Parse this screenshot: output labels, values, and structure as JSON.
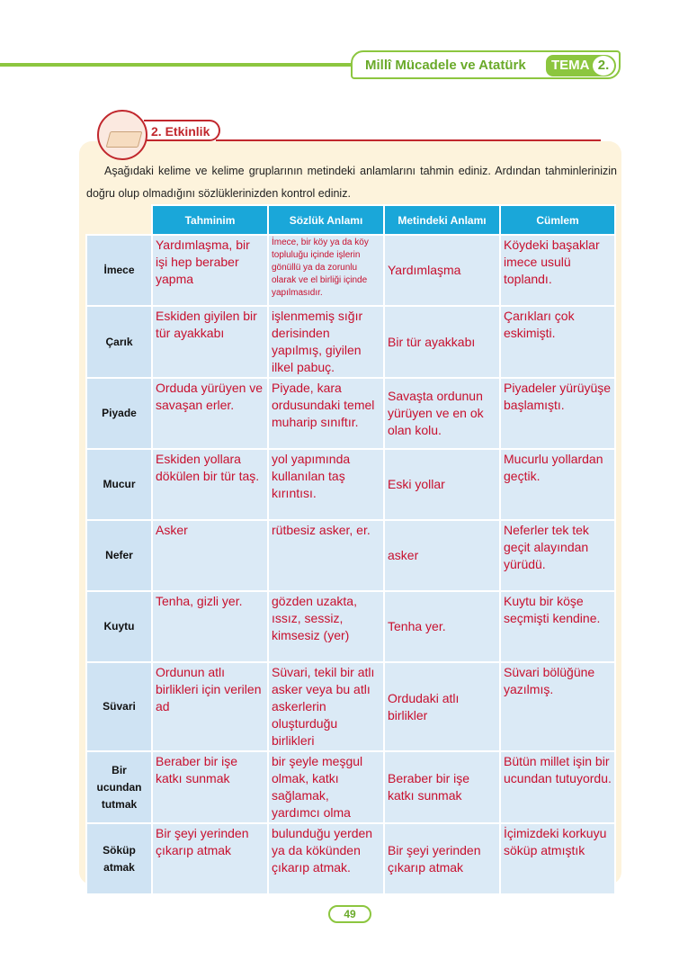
{
  "header": {
    "theme_title": "Millî Mücadele ve Atatürk",
    "tema_label": "TEMA",
    "tema_number": "2.",
    "accent": "#8cc63f"
  },
  "activity": {
    "label": "2. Etkinlik",
    "icon": "open-book-pencil-icon",
    "accent": "#c1272d"
  },
  "intro": "Aşağıdaki kelime ve kelime gruplarının metindeki anlamlarını tahmin ediniz. Ardından tahminlerinizin doğru olup olmadığını sözlüklerinizden kontrol ediniz.",
  "table": {
    "columns": [
      "Tahminim",
      "Sözlük Anlamı",
      "Metindeki Anlamı",
      "Cümlem"
    ],
    "rows": [
      {
        "word": "İmece",
        "guess": "Yardımlaşma, bir işi hep beraber yapma",
        "dictionary": "İmece, bir köy ya da köy topluluğu içinde işlerin gönüllü ya da zorunlu olarak ve el birliği içinde yapılmasıdır.",
        "context": "Yardımlaşma",
        "sentence": "Köydeki başaklar imece usulü toplandı."
      },
      {
        "word": "Çarık",
        "guess": "Eskiden giyilen bir tür ayakkabı",
        "dictionary": "işlenmemiş sığır derisinden yapılmış, giyilen ilkel pabuç.",
        "context": "Bir tür ayakkabı",
        "sentence": "Çarıkları çok eskimişti."
      },
      {
        "word": "Piyade",
        "guess": "Orduda yürüyen ve savaşan erler.",
        "dictionary": "Piyade, kara ordusundaki temel muharip sınıftır.",
        "context": "Savaşta ordunun yürüyen ve en ok olan kolu.",
        "sentence": "Piyadeler yürüyüşe başlamıştı."
      },
      {
        "word": "Mucur",
        "guess": "Eskiden yollara dökülen bir tür taş.",
        "dictionary": "yol yapımında kullanılan taş kırıntısı.",
        "context": "Eski yollar",
        "sentence": "Mucurlu yollardan geçtik."
      },
      {
        "word": "Nefer",
        "guess": "Asker",
        "dictionary": "rütbesiz asker, er.",
        "context": "asker",
        "sentence": "Neferler tek tek geçit alayından yürüdü."
      },
      {
        "word": "Kuytu",
        "guess": "Tenha, gizli yer.",
        "dictionary": "gözden uzakta, ıssız, sessiz, kimsesiz (yer)",
        "context": "Tenha yer.",
        "sentence": "Kuytu bir köşe seçmişti kendine."
      },
      {
        "word": "Süvari",
        "guess": "Ordunun atlı birlikleri için verilen ad",
        "dictionary": "Süvari, tekil bir atlı asker veya bu atlı askerlerin oluşturduğu birlikleri",
        "context": "Ordudaki atlı birlikler",
        "sentence": "Süvari bölüğüne yazılmış."
      },
      {
        "word": "Bir ucundan tutmak",
        "guess": "Beraber bir işe katkı sunmak",
        "dictionary": "bir şeyle meşgul olmak, katkı sağlamak, yardımcı olma",
        "context": "Beraber bir işe katkı sunmak",
        "sentence": "Bütün millet işin bir ucundan tutuyordu."
      },
      {
        "word": "Söküp atmak",
        "guess": "Bir şeyi yerinden çıkarıp atmak",
        "dictionary": "bulunduğu yerden ya da kökünden çıkarıp atmak.",
        "context": "Bir şeyi yerinden çıkarıp atmak",
        "sentence": "İçimizdeki korkuyu söküp atmıştık"
      }
    ]
  },
  "page_number": "49"
}
